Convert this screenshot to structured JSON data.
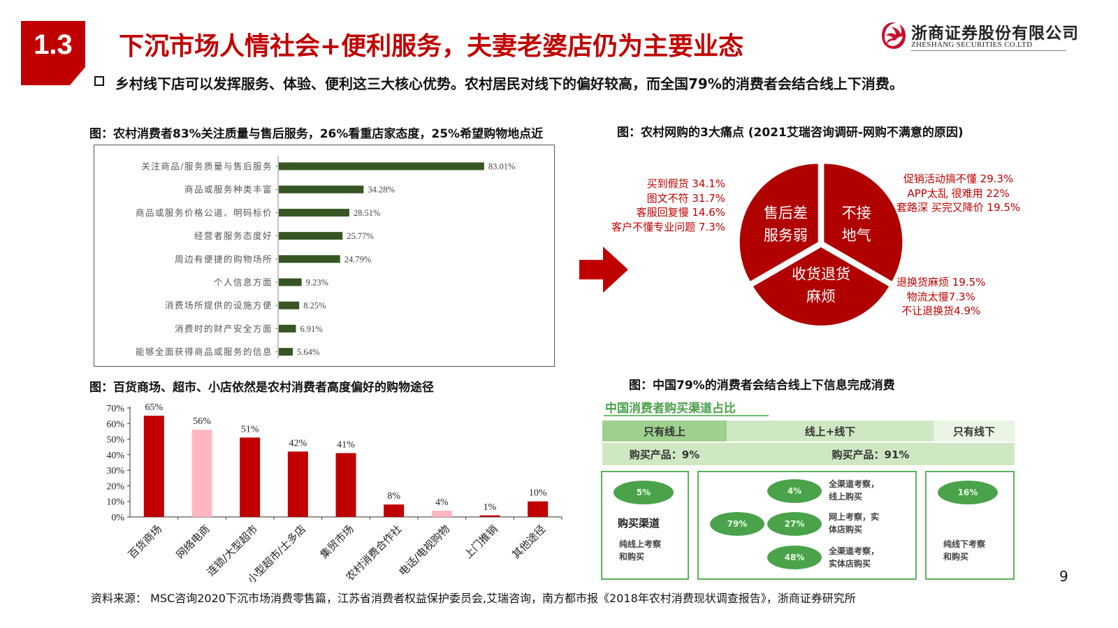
{
  "header": {
    "section_number": "1.3",
    "title": "下沉市场人情社会+便利服务，夫妻老婆店仍为主要业态",
    "company_cn": "浙商证券股份有限公司",
    "company_en": "ZHESHANG SECURITIES CO.LTD",
    "brand_color": "#c00000"
  },
  "bullet": "乡村线下店可以发挥服务、体验、便利这三大核心优势。农村居民对线下的偏好较高，而全国79%的消费者会结合线上下消费。",
  "captions": {
    "fig1": "图：农村消费者83%关注质量与售后服务，26%看重店家态度，25%希望购物地点近",
    "fig2": "图：农村网购的3大痛点 (2021艾瑞咨询调研-网购不满意的原因)",
    "fig3": "图：百货商场、超市、小店依然是农村消费者高度偏好的购物途径",
    "fig4": "图：中国79%的消费者会结合线上下信息完成消费"
  },
  "chart_data": [
    {
      "type": "bar",
      "orientation": "horizontal",
      "categories": [
        "关注商品/服务质量与售后服务",
        "商品或服务种类丰富",
        "商品或服务价格公道、明码标价",
        "经营者服务态度好",
        "周边有便捷的购物场所",
        "个人信息方面",
        "消费场所提供的设施方便",
        "消费时的财产安全方面",
        "能够全面获得商品或服务的信息"
      ],
      "values": [
        83.01,
        34.28,
        28.51,
        25.77,
        24.79,
        9.23,
        8.25,
        6.91,
        5.64
      ],
      "value_labels": [
        "83.01%",
        "34.28%",
        "28.51%",
        "25.77%",
        "24.79%",
        "9.23%",
        "8.25%",
        "6.91%",
        "5.64%"
      ],
      "xlim": [
        0,
        100
      ],
      "color": "#375623"
    },
    {
      "type": "pie",
      "labels": [
        "售后差服务弱",
        "不接地气",
        "收货退货麻烦"
      ],
      "slice_lines": [
        [
          "售后差",
          "服务弱"
        ],
        [
          "不接",
          "地气"
        ],
        [
          "收货退货",
          "麻烦"
        ]
      ],
      "values": [
        1,
        1,
        1
      ],
      "color": "#b00000",
      "annotations": {
        "left": [
          "买到假货 34.1%",
          "图文不符 31.7%",
          "客服回复慢 14.6%",
          "客户不懂专业问题 7.3%"
        ],
        "right": [
          "促销活动搞不懂 29.3%",
          "APP太乱 很难用 22%",
          "套路深 买完又降价 19.5%"
        ],
        "bottom": [
          "退换货麻烦 19.5%",
          "物流太慢7.3%",
          "不让退换货4.9%"
        ]
      }
    },
    {
      "type": "bar",
      "categories": [
        "百货商场",
        "网络电商",
        "连锁/大型超市",
        "小型超市/士多店",
        "集贸市场",
        "农村消费合作社",
        "电话/电视购物",
        "上门推销",
        "其他途径"
      ],
      "values": [
        65,
        56,
        51,
        42,
        41,
        8,
        4,
        1,
        10
      ],
      "value_labels": [
        "65%",
        "56%",
        "51%",
        "42%",
        "41%",
        "8%",
        "4%",
        "1%",
        "10%"
      ],
      "yticks": [
        "0%",
        "10%",
        "20%",
        "30%",
        "40%",
        "50%",
        "60%",
        "70%"
      ],
      "ylim": [
        0,
        70
      ],
      "colors": [
        "#c00000",
        "#ffb6c1",
        "#c00000",
        "#c00000",
        "#c00000",
        "#c00000",
        "#ffb6c1",
        "#c00000",
        "#c00000"
      ]
    }
  ],
  "channels": {
    "title": "中国消费者购买渠道占比",
    "only_online": "只有线上",
    "online_offline": "线上+线下",
    "only_offline": "只有线下",
    "online_products": "购买产品：9%",
    "combined_products": "购买产品：91%",
    "purchase_channel": "购买渠道",
    "left_pct": "5%",
    "left_desc": [
      "纯线上考察",
      "和购买"
    ],
    "mid_total": "79%",
    "mid_items": [
      {
        "pct": "4%",
        "desc": [
          "全渠道考察，",
          "线上购买"
        ]
      },
      {
        "pct": "27%",
        "desc": [
          "网上考察，实",
          "体店购买"
        ]
      },
      {
        "pct": "48%",
        "desc": [
          "全渠道考察，",
          "实体店购买"
        ]
      }
    ],
    "right_pct": "16%",
    "right_desc": [
      "纯线下考察",
      "和购买"
    ],
    "green_dark": "#4aa34a",
    "green_light": "#cfe8c4"
  },
  "page_number": "9",
  "source": "资料来源： MSC咨询2020下沉市场消费零售篇，江苏省消费者权益保护委员会,艾瑞咨询，南方都市报《2018年农村消费现状调查报告》，浙商证券研究所"
}
